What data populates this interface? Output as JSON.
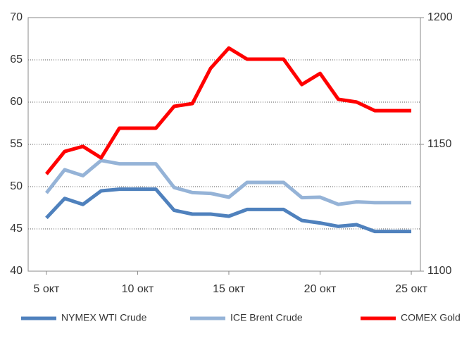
{
  "chart_data": {
    "type": "line",
    "x": [
      5,
      6,
      7,
      8,
      9,
      10,
      11,
      12,
      13,
      14,
      15,
      16,
      17,
      18,
      19,
      20,
      21,
      22,
      23,
      24,
      25
    ],
    "xlim": [
      4,
      25.5
    ],
    "xticks": [
      {
        "value": 5,
        "label": "5 окт"
      },
      {
        "value": 10,
        "label": "10 окт"
      },
      {
        "value": 15,
        "label": "15 окт"
      },
      {
        "value": 20,
        "label": "20 окт"
      },
      {
        "value": 25,
        "label": "25 окт"
      }
    ],
    "ylim": [
      40,
      70
    ],
    "yticks": [
      40,
      45,
      50,
      55,
      60,
      65,
      70
    ],
    "y2lim": [
      1100,
      1200
    ],
    "y2ticks": [
      1100,
      1150,
      1200
    ],
    "grid": true,
    "legend": "bottom",
    "series": [
      {
        "name": "NYMEX WTI Crude",
        "color": "#4f81bd",
        "values": [
          46.3,
          48.6,
          47.9,
          49.5,
          49.7,
          49.7,
          49.7,
          47.2,
          46.75,
          46.75,
          46.5,
          47.3,
          47.3,
          47.3,
          46.0,
          45.7,
          45.3,
          45.5,
          44.7,
          44.7,
          44.7
        ]
      },
      {
        "name": "ICE Brent Crude",
        "color": "#95b3d7",
        "values": [
          49.25,
          52.0,
          51.3,
          53.1,
          52.7,
          52.7,
          52.7,
          49.9,
          49.3,
          49.2,
          48.75,
          50.5,
          50.5,
          50.5,
          48.7,
          48.75,
          47.9,
          48.2,
          48.1,
          48.1,
          48.1
        ]
      },
      {
        "name": "COMEX Gold",
        "color": "#ff0000",
        "axis": "y2",
        "values": [
          1138.3,
          1147.2,
          1149.2,
          1144.7,
          1156.4,
          1156.4,
          1156.4,
          1165,
          1166.1,
          1180,
          1188,
          1183.6,
          1183.6,
          1183.6,
          1173.6,
          1178,
          1167.8,
          1166.7,
          1163.3,
          1163.3,
          1163.3
        ]
      }
    ]
  }
}
